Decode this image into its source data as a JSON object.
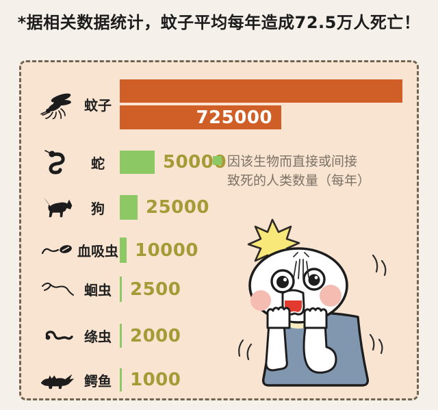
{
  "title": "*据相关数据统计，蚊子平均每年造成72.5万人死亡！",
  "chart_data": {
    "type": "bar",
    "orientation": "horizontal",
    "title": "*据相关数据统计，蚊子平均每年造成72.5万人死亡！",
    "categories": [
      "蚊子",
      "蛇",
      "狗",
      "血吸虫",
      "蛔虫",
      "绦虫",
      "鳄鱼"
    ],
    "values": [
      725000,
      50000,
      25000,
      10000,
      2500,
      2000,
      1000
    ],
    "xlabel": "",
    "ylabel": "",
    "legend_position": "right of snake bar",
    "grid": false,
    "rows": [
      {
        "label": "蚊子",
        "value": 725000,
        "value_label": "725000",
        "icon": "mosquito-icon",
        "bar_color": "#d05e27"
      },
      {
        "label": "蛇",
        "value": 50000,
        "value_label": "50000",
        "icon": "snake-icon",
        "bar_color": "#8cc863"
      },
      {
        "label": "狗",
        "value": 25000,
        "value_label": "25000",
        "icon": "dog-icon",
        "bar_color": "#8cc863"
      },
      {
        "label": "血吸虫",
        "value": 10000,
        "value_label": "10000",
        "icon": "schistosome-icon",
        "bar_color": "#8cc863"
      },
      {
        "label": "蛔虫",
        "value": 2500,
        "value_label": "2500",
        "icon": "roundworm-icon",
        "bar_color": "#8cc863"
      },
      {
        "label": "绦虫",
        "value": 2000,
        "value_label": "2000",
        "icon": "tapeworm-icon",
        "bar_color": "#8cc863"
      },
      {
        "label": "鳄鱼",
        "value": 1000,
        "value_label": "1000",
        "icon": "crocodile-icon",
        "bar_color": "#8cc863"
      }
    ],
    "legend": {
      "line1": "因该生物而直接或间接",
      "line2": "致死的人类数量（每年）",
      "swatch_color": "#8cc863"
    }
  },
  "colors": {
    "outer_background": "#f5f0e9",
    "panel_background": "#f8e4d1",
    "panel_border": "#6f6351",
    "bar_orange": "#d05e27",
    "bar_green": "#8cc863",
    "value_text": "#a49b36",
    "legend_text": "#7b7265",
    "title_text": "#1c1c1c",
    "in_bar_value_text": "#ffffff"
  },
  "illustration": "shocked-cartoon-character"
}
